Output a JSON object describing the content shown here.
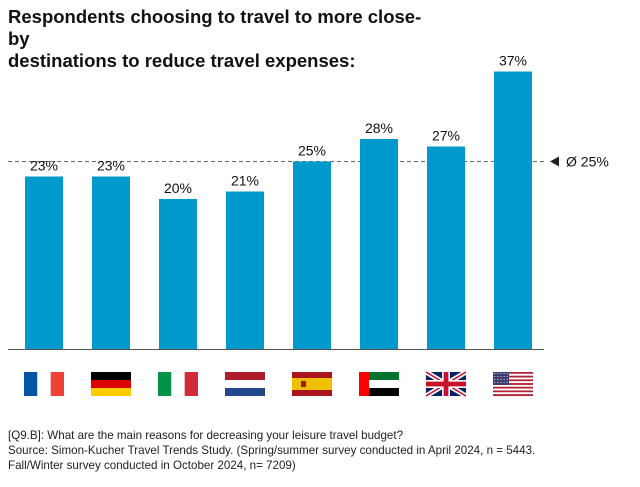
{
  "title_line1": "Respondents choosing to travel to more close-by",
  "title_line2": "destinations to reduce travel expenses:",
  "chart_data": {
    "type": "bar",
    "categories": [
      "France",
      "Germany",
      "Italy",
      "Netherlands",
      "Spain",
      "United Arab Emirates",
      "United Kingdom",
      "United States"
    ],
    "values": [
      23,
      23,
      20,
      21,
      25,
      28,
      27,
      37
    ],
    "value_labels": [
      "23%",
      "23%",
      "20%",
      "21%",
      "25%",
      "28%",
      "27%",
      "37%"
    ],
    "flag_icons": [
      "flag-france-icon",
      "flag-germany-icon",
      "flag-italy-icon",
      "flag-netherlands-icon",
      "flag-spain-icon",
      "flag-uae-icon",
      "flag-uk-icon",
      "flag-usa-icon"
    ],
    "average": 25,
    "average_label": "Ø 25%",
    "ylim": [
      0,
      40
    ],
    "bar_color": "#0099cc",
    "grid": false
  },
  "footnote": {
    "question": "[Q9.B]: What are the main reasons for decreasing your leisure travel budget?",
    "source_line1": "Source:  Simon-Kucher Travel Trends Study. (Spring/summer survey conducted in April 2024, n = 5443.",
    "source_line2": "Fall/Winter survey conducted in October 2024, n= 7209)"
  }
}
